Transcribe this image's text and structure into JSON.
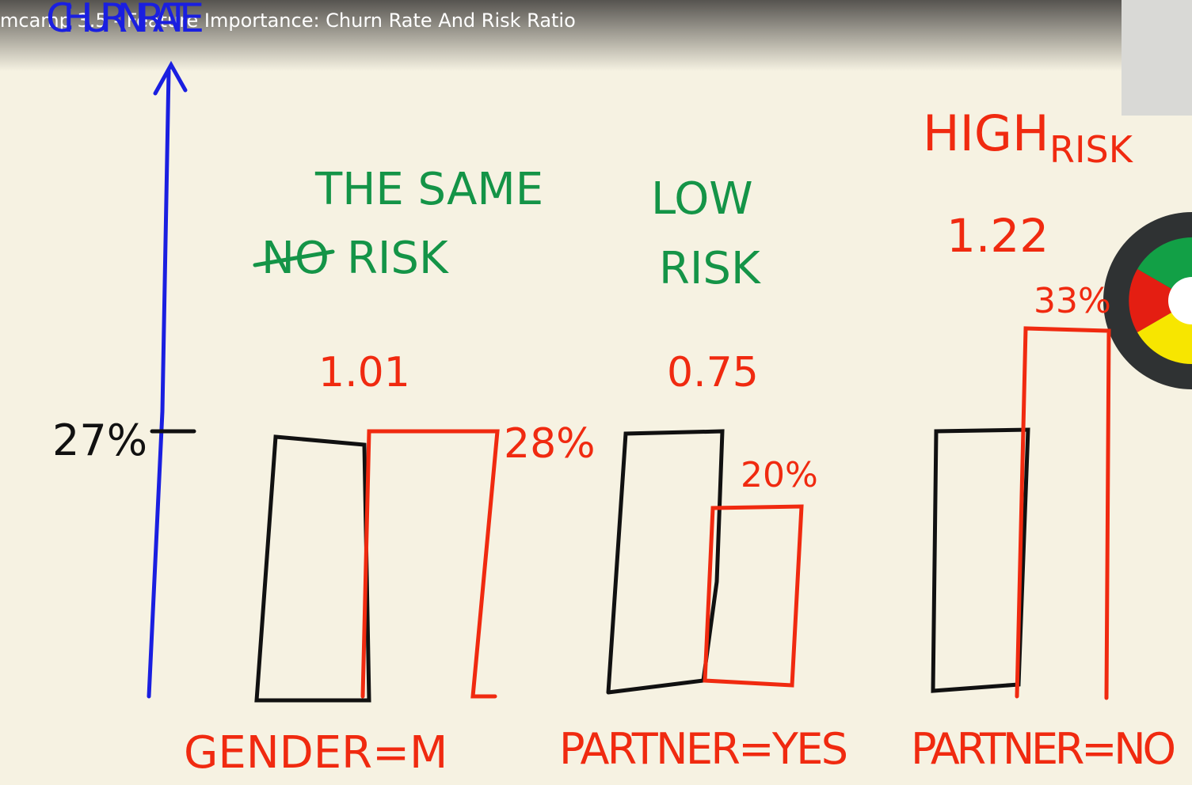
{
  "video": {
    "title": "mcamp 3.5 - Feature Importance: Churn Rate And Risk Ratio"
  },
  "whiteboard": {
    "axis_label": "CHURN RATE",
    "baseline_label": "27%",
    "groups": [
      {
        "annotation": "THE SAME",
        "annotation_struck": "NO",
        "annotation_risk": "RISK",
        "ratio": "1.01",
        "group_rate": "28%",
        "label": "GENDER=M"
      },
      {
        "annotation": "LOW",
        "annotation_risk": "RISK",
        "ratio": "0.75",
        "group_rate": "20%",
        "label": "PARTNER=YES"
      },
      {
        "annotation": "HIGH",
        "annotation_risk": "RISK",
        "ratio": "1.22",
        "group_rate": "33%",
        "label": "PARTNER=NO"
      }
    ]
  }
}
